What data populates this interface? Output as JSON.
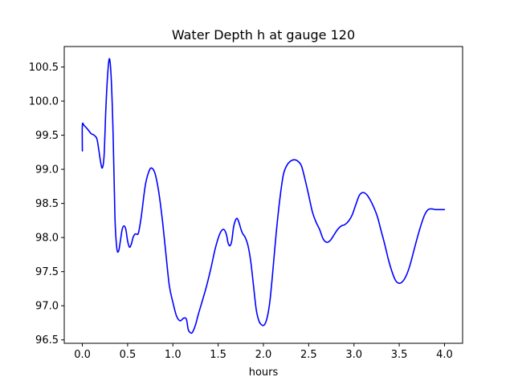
{
  "chart_data": {
    "type": "line",
    "title": "Water Depth h at gauge 120",
    "xlabel": "hours",
    "ylabel": "",
    "xlim": [
      -0.2,
      4.2
    ],
    "ylim": [
      96.45,
      100.8
    ],
    "xticks": [
      0.0,
      0.5,
      1.0,
      1.5,
      2.0,
      2.5,
      3.0,
      3.5,
      4.0
    ],
    "yticks": [
      96.5,
      97.0,
      97.5,
      98.0,
      98.5,
      99.0,
      99.5,
      100.0,
      100.5
    ],
    "xtick_labels": [
      "0.0",
      "0.5",
      "1.0",
      "1.5",
      "2.0",
      "2.5",
      "3.0",
      "3.5",
      "4.0"
    ],
    "ytick_labels": [
      "96.5",
      "97.0",
      "97.5",
      "98.0",
      "98.5",
      "99.0",
      "99.5",
      "100.0",
      "100.5"
    ],
    "grid": false,
    "series": [
      {
        "color": "#0000ff",
        "x": [
          0.0,
          0.0,
          0.02,
          0.05,
          0.08,
          0.1,
          0.13,
          0.16,
          0.18,
          0.2,
          0.22,
          0.24,
          0.26,
          0.28,
          0.3,
          0.32,
          0.34,
          0.36,
          0.38,
          0.4,
          0.42,
          0.44,
          0.46,
          0.48,
          0.5,
          0.52,
          0.54,
          0.56,
          0.58,
          0.6,
          0.62,
          0.65,
          0.68,
          0.7,
          0.73,
          0.76,
          0.8,
          0.84,
          0.88,
          0.92,
          0.96,
          1.0,
          1.04,
          1.08,
          1.12,
          1.15,
          1.17,
          1.2,
          1.22,
          1.25,
          1.28,
          1.32,
          1.37,
          1.42,
          1.47,
          1.52,
          1.56,
          1.59,
          1.61,
          1.63,
          1.65,
          1.67,
          1.69,
          1.71,
          1.73,
          1.75,
          1.77,
          1.8,
          1.83,
          1.86,
          1.89,
          1.92,
          1.95,
          1.98,
          2.01,
          2.04,
          2.07,
          2.1,
          2.14,
          2.18,
          2.22,
          2.26,
          2.3,
          2.34,
          2.38,
          2.42,
          2.46,
          2.5,
          2.54,
          2.58,
          2.62,
          2.66,
          2.7,
          2.74,
          2.78,
          2.82,
          2.86,
          2.9,
          2.94,
          2.98,
          3.02,
          3.06,
          3.1,
          3.14,
          3.18,
          3.22,
          3.26,
          3.3,
          3.34,
          3.38,
          3.42,
          3.46,
          3.5,
          3.54,
          3.58,
          3.62,
          3.66,
          3.7,
          3.74,
          3.78,
          3.82,
          3.86,
          3.9,
          3.94,
          3.98,
          4.0
        ],
        "y": [
          99.27,
          99.65,
          99.64,
          99.6,
          99.55,
          99.52,
          99.5,
          99.45,
          99.3,
          99.12,
          99.02,
          99.2,
          99.9,
          100.4,
          100.62,
          100.3,
          99.5,
          98.3,
          97.85,
          97.8,
          97.95,
          98.12,
          98.17,
          98.12,
          97.95,
          97.86,
          97.9,
          98.0,
          98.05,
          98.05,
          98.07,
          98.3,
          98.62,
          98.8,
          98.95,
          99.02,
          98.95,
          98.7,
          98.3,
          97.8,
          97.3,
          97.05,
          96.85,
          96.78,
          96.82,
          96.8,
          96.65,
          96.6,
          96.62,
          96.72,
          96.87,
          97.05,
          97.28,
          97.55,
          97.85,
          98.06,
          98.12,
          98.05,
          97.92,
          97.88,
          97.95,
          98.15,
          98.25,
          98.28,
          98.22,
          98.13,
          98.06,
          98.0,
          97.88,
          97.65,
          97.3,
          96.95,
          96.78,
          96.72,
          96.72,
          96.82,
          97.05,
          97.45,
          98.05,
          98.55,
          98.92,
          99.06,
          99.12,
          99.14,
          99.12,
          99.05,
          98.85,
          98.62,
          98.38,
          98.23,
          98.12,
          97.98,
          97.93,
          97.96,
          98.04,
          98.12,
          98.17,
          98.19,
          98.24,
          98.33,
          98.48,
          98.62,
          98.66,
          98.63,
          98.55,
          98.44,
          98.3,
          98.1,
          97.9,
          97.68,
          97.5,
          97.37,
          97.33,
          97.36,
          97.45,
          97.6,
          97.8,
          98.0,
          98.18,
          98.33,
          98.41,
          98.42,
          98.41,
          98.41,
          98.41,
          98.41
        ]
      }
    ]
  }
}
